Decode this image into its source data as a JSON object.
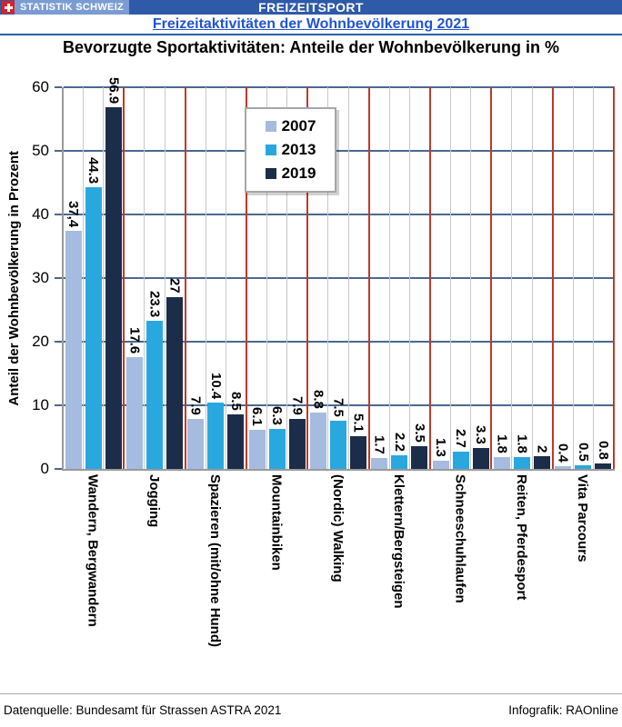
{
  "header": {
    "brand": "STATISTIK SCHWEIZ",
    "bar_title": "FREIZEITSPORT",
    "subtitle_link": "Freizeitaktivitäten der Wohnbevölkerung 2021"
  },
  "chart_title": "Bevorzugte Sportaktivitäten: Anteile der Wohnbevölkerung in %",
  "chart_data": {
    "type": "bar",
    "title": "Bevorzugte Sportaktivitäten: Anteile der Wohnbevölkerung in %",
    "ylabel": "Anteil der Wohnbevölkerung in Prozent",
    "ylim": [
      0,
      60
    ],
    "yticks": [
      0,
      10,
      20,
      30,
      40,
      50,
      60
    ],
    "grid": true,
    "legend_position": "top-inside",
    "categories": [
      "Wandern, Bergwandern",
      "Jogging",
      "Spazieren (mit/ohne Hund)",
      "Mountainbiken",
      "(Nordic) Walking",
      "Klettern/Bergsteigen",
      "Schneeschuhlaufen",
      "Reiten, Pferdesport",
      "Vita Parcours"
    ],
    "series": [
      {
        "name": "2007",
        "color": "#a5bbdf",
        "values": [
          37.4,
          17.6,
          7.9,
          6.1,
          8.8,
          1.7,
          1.3,
          1.8,
          0.4
        ],
        "labels": [
          "37,4",
          "17.6",
          "7.9",
          "6.1",
          "8.8",
          "1.7",
          "1.3",
          "1.8",
          "0.4"
        ]
      },
      {
        "name": "2013",
        "color": "#29a8e0",
        "values": [
          44.3,
          23.3,
          10.4,
          6.3,
          7.5,
          2.2,
          2.7,
          1.8,
          0.5
        ],
        "labels": [
          "44.3",
          "23.3",
          "10.4",
          "6.3",
          "7.5",
          "2.2",
          "2.7",
          "1.8",
          "0.5"
        ]
      },
      {
        "name": "2019",
        "color": "#1b2d49",
        "values": [
          56.9,
          27,
          8.5,
          7.9,
          5.1,
          3.5,
          3.3,
          2,
          0.8
        ],
        "labels": [
          "56.9",
          "27",
          "8.5",
          "7.9",
          "5.1",
          "3.5",
          "3.3",
          "2",
          "0.8"
        ]
      }
    ]
  },
  "colors": {
    "header_bar": "#2e5aa8",
    "brand_box": "#7b9cd3",
    "flag_red": "#d8232a",
    "link_blue": "#2053d4",
    "grid_navy": "#4a6890",
    "grid_gray": "#c8c8c8",
    "separator_red": "#c0392b",
    "axis_gray": "#9a9a9a"
  },
  "footer": {
    "source": "Datenquelle: Bundesamt für Strassen ASTRA 2021",
    "credit": "Infografik: RAOnline"
  }
}
